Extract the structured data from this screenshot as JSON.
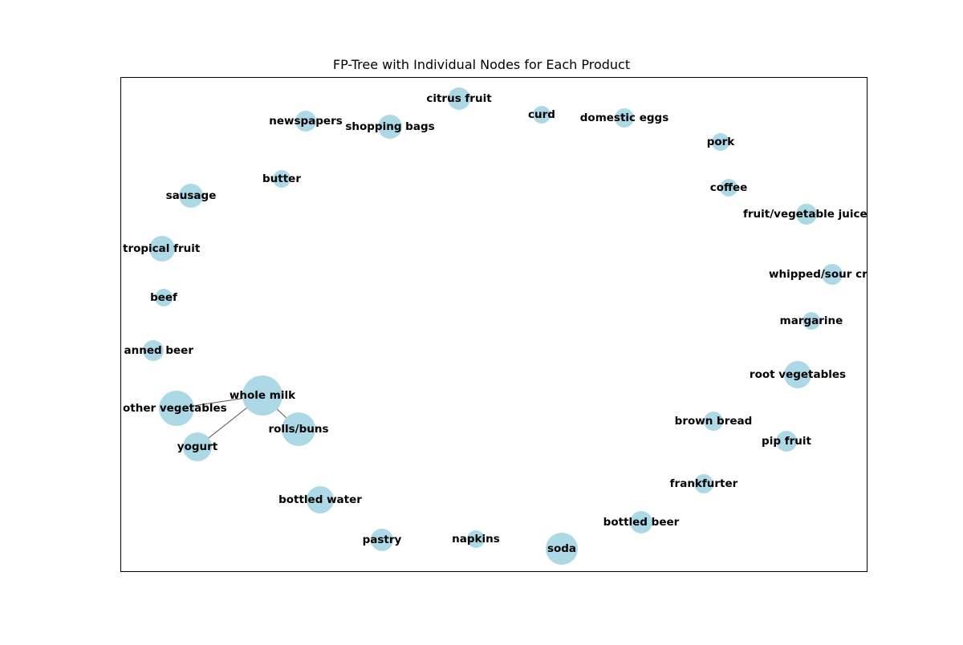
{
  "figure": {
    "title": "FP-Tree with Individual Nodes for Each Product",
    "node_color": "#add8e6",
    "edge_color": "#555555",
    "frame_color": "#000000"
  },
  "nodes": [
    {
      "id": "citrus fruit",
      "label": "citrus fruit"
    },
    {
      "id": "curd",
      "label": "curd"
    },
    {
      "id": "domestic eggs",
      "label": "domestic eggs"
    },
    {
      "id": "newspapers",
      "label": "newspapers"
    },
    {
      "id": "shopping bags",
      "label": "shopping bags"
    },
    {
      "id": "pork",
      "label": "pork"
    },
    {
      "id": "butter",
      "label": "butter"
    },
    {
      "id": "coffee",
      "label": "coffee"
    },
    {
      "id": "sausage",
      "label": "sausage"
    },
    {
      "id": "fruit/vegetable juice",
      "label": "fruit/vegetable juice"
    },
    {
      "id": "tropical fruit",
      "label": "tropical fruit"
    },
    {
      "id": "whipped/sour cream",
      "label": "whipped/sour cr"
    },
    {
      "id": "beef",
      "label": "beef"
    },
    {
      "id": "margarine",
      "label": "margarine"
    },
    {
      "id": "canned beer",
      "label": "anned beer"
    },
    {
      "id": "root vegetables",
      "label": "root vegetables"
    },
    {
      "id": "whole milk",
      "label": "whole milk"
    },
    {
      "id": "other vegetables",
      "label": "other vegetables"
    },
    {
      "id": "rolls/buns",
      "label": "rolls/buns"
    },
    {
      "id": "brown bread",
      "label": "brown bread"
    },
    {
      "id": "yogurt",
      "label": "yogurt"
    },
    {
      "id": "pip fruit",
      "label": "pip fruit"
    },
    {
      "id": "frankfurter",
      "label": "frankfurter"
    },
    {
      "id": "bottled water",
      "label": "bottled water"
    },
    {
      "id": "bottled beer",
      "label": "bottled beer"
    },
    {
      "id": "pastry",
      "label": "pastry"
    },
    {
      "id": "napkins",
      "label": "napkins"
    },
    {
      "id": "soda",
      "label": "soda"
    }
  ],
  "edges": [
    {
      "source": "whole milk",
      "target": "other vegetables"
    },
    {
      "source": "whole milk",
      "target": "rolls/buns"
    },
    {
      "source": "whole milk",
      "target": "yogurt"
    }
  ]
}
